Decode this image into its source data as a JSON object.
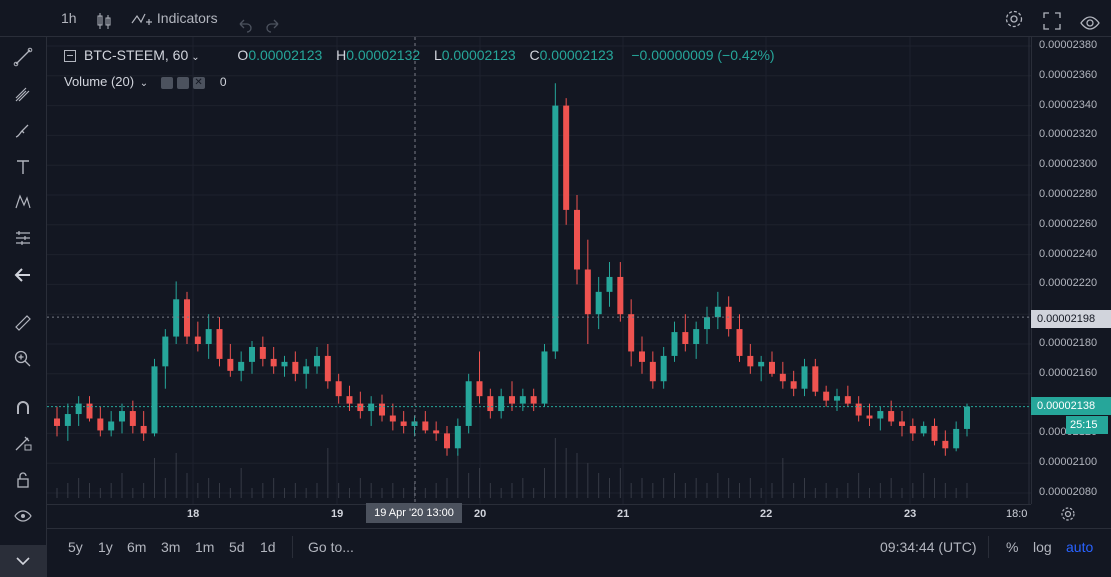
{
  "toolbar": {
    "interval": "1h",
    "indicators_label": "Indicators"
  },
  "legend": {
    "symbol": "BTC-STEEM, 60",
    "o_label": "O",
    "o_value": "0.00002123",
    "h_label": "H",
    "h_value": "0.00002132",
    "l_label": "L",
    "l_value": "0.00002123",
    "c_label": "C",
    "c_value": "0.00002123",
    "change": "−0.00000009 (−0.42%)",
    "volume_label": "Volume (20)",
    "volume_value": "0"
  },
  "price_axis": {
    "labels": [
      "0.00002380",
      "0.00002360",
      "0.00002340",
      "0.00002320",
      "0.00002300",
      "0.00002280",
      "0.00002260",
      "0.00002240",
      "0.00002220",
      "0.00002180",
      "0.00002160",
      "0.00002120",
      "0.00002100",
      "0.00002080"
    ],
    "crosshair_price": "0.00002198",
    "last_price": "0.00002138",
    "countdown": "25:15"
  },
  "time_axis": {
    "ticks": [
      "18",
      "19",
      "20",
      "21",
      "22",
      "23",
      "18:0"
    ],
    "crosshair_label": "19 Apr '20   13:00"
  },
  "bottom": {
    "ranges": [
      "5y",
      "1y",
      "6m",
      "3m",
      "1m",
      "5d",
      "1d"
    ],
    "goto": "Go to...",
    "clock": "09:34:44 (UTC)",
    "percent": "%",
    "log": "log",
    "auto": "auto"
  },
  "colors": {
    "up": "#26a69a",
    "down": "#ef5350",
    "background": "#131722",
    "accent": "#2962ff"
  },
  "chart_data": {
    "type": "candlestick",
    "symbol": "BTC-STEEM",
    "interval": "60",
    "ylim": [
      2.08e-05,
      2.39e-05
    ],
    "x_ticks": [
      "18",
      "19",
      "20",
      "21",
      "22",
      "23",
      "18:0"
    ],
    "candles": [
      [
        2.13e-05,
        2.138e-05,
        2.118e-05,
        2.125e-05
      ],
      [
        2.125e-05,
        2.14e-05,
        2.115e-05,
        2.133e-05
      ],
      [
        2.133e-05,
        2.145e-05,
        2.125e-05,
        2.14e-05
      ],
      [
        2.14e-05,
        2.145e-05,
        2.128e-05,
        2.13e-05
      ],
      [
        2.13e-05,
        2.138e-05,
        2.118e-05,
        2.122e-05
      ],
      [
        2.122e-05,
        2.135e-05,
        2.118e-05,
        2.128e-05
      ],
      [
        2.128e-05,
        2.14e-05,
        2.12e-05,
        2.135e-05
      ],
      [
        2.135e-05,
        2.142e-05,
        2.12e-05,
        2.125e-05
      ],
      [
        2.125e-05,
        2.135e-05,
        2.115e-05,
        2.12e-05
      ],
      [
        2.12e-05,
        2.17e-05,
        2.118e-05,
        2.165e-05
      ],
      [
        2.165e-05,
        2.19e-05,
        2.15e-05,
        2.185e-05
      ],
      [
        2.185e-05,
        2.222e-05,
        2.18e-05,
        2.21e-05
      ],
      [
        2.21e-05,
        2.215e-05,
        2.18e-05,
        2.185e-05
      ],
      [
        2.185e-05,
        2.195e-05,
        2.175e-05,
        2.18e-05
      ],
      [
        2.18e-05,
        2.2e-05,
        2.17e-05,
        2.19e-05
      ],
      [
        2.19e-05,
        2.198e-05,
        2.165e-05,
        2.17e-05
      ],
      [
        2.17e-05,
        2.18e-05,
        2.158e-05,
        2.162e-05
      ],
      [
        2.162e-05,
        2.175e-05,
        2.155e-05,
        2.168e-05
      ],
      [
        2.168e-05,
        2.182e-05,
        2.16e-05,
        2.178e-05
      ],
      [
        2.178e-05,
        2.185e-05,
        2.165e-05,
        2.17e-05
      ],
      [
        2.17e-05,
        2.178e-05,
        2.16e-05,
        2.165e-05
      ],
      [
        2.165e-05,
        2.172e-05,
        2.158e-05,
        2.168e-05
      ],
      [
        2.168e-05,
        2.175e-05,
        2.155e-05,
        2.16e-05
      ],
      [
        2.16e-05,
        2.17e-05,
        2.15e-05,
        2.165e-05
      ],
      [
        2.165e-05,
        2.178e-05,
        2.16e-05,
        2.172e-05
      ],
      [
        2.172e-05,
        2.18e-05,
        2.15e-05,
        2.155e-05
      ],
      [
        2.155e-05,
        2.16e-05,
        2.14e-05,
        2.145e-05
      ],
      [
        2.145e-05,
        2.152e-05,
        2.135e-05,
        2.14e-05
      ],
      [
        2.14e-05,
        2.148e-05,
        2.13e-05,
        2.135e-05
      ],
      [
        2.135e-05,
        2.145e-05,
        2.125e-05,
        2.14e-05
      ],
      [
        2.14e-05,
        2.146e-05,
        2.128e-05,
        2.132e-05
      ],
      [
        2.132e-05,
        2.14e-05,
        2.122e-05,
        2.128e-05
      ],
      [
        2.128e-05,
        2.135e-05,
        2.12e-05,
        2.125e-05
      ],
      [
        2.125e-05,
        2.132e-05,
        2.118e-05,
        2.128e-05
      ],
      [
        2.128e-05,
        2.135e-05,
        2.12e-05,
        2.122e-05
      ],
      [
        2.122e-05,
        2.128e-05,
        2.115e-05,
        2.12e-05
      ],
      [
        2.12e-05,
        2.125e-05,
        2.105e-05,
        2.11e-05
      ],
      [
        2.11e-05,
        2.13e-05,
        2.105e-05,
        2.125e-05
      ],
      [
        2.125e-05,
        2.16e-05,
        2.12e-05,
        2.155e-05
      ],
      [
        2.155e-05,
        2.175e-05,
        2.14e-05,
        2.145e-05
      ],
      [
        2.145e-05,
        2.15e-05,
        2.13e-05,
        2.135e-05
      ],
      [
        2.135e-05,
        2.15e-05,
        2.13e-05,
        2.145e-05
      ],
      [
        2.145e-05,
        2.155e-05,
        2.135e-05,
        2.14e-05
      ],
      [
        2.14e-05,
        2.15e-05,
        2.135e-05,
        2.145e-05
      ],
      [
        2.145e-05,
        2.15e-05,
        2.135e-05,
        2.14e-05
      ],
      [
        2.14e-05,
        2.18e-05,
        2.138e-05,
        2.175e-05
      ],
      [
        2.175e-05,
        2.355e-05,
        2.17e-05,
        2.34e-05
      ],
      [
        2.34e-05,
        2.345e-05,
        2.26e-05,
        2.27e-05
      ],
      [
        2.27e-05,
        2.28e-05,
        2.22e-05,
        2.23e-05
      ],
      [
        2.23e-05,
        2.25e-05,
        2.18e-05,
        2.2e-05
      ],
      [
        2.2e-05,
        2.225e-05,
        2.19e-05,
        2.215e-05
      ],
      [
        2.215e-05,
        2.235e-05,
        2.205e-05,
        2.225e-05
      ],
      [
        2.225e-05,
        2.235e-05,
        2.195e-05,
        2.2e-05
      ],
      [
        2.2e-05,
        2.21e-05,
        2.165e-05,
        2.175e-05
      ],
      [
        2.175e-05,
        2.185e-05,
        2.16e-05,
        2.168e-05
      ],
      [
        2.168e-05,
        2.175e-05,
        2.15e-05,
        2.155e-05
      ],
      [
        2.155e-05,
        2.178e-05,
        2.15e-05,
        2.172e-05
      ],
      [
        2.172e-05,
        2.195e-05,
        2.168e-05,
        2.188e-05
      ],
      [
        2.188e-05,
        2.2e-05,
        2.175e-05,
        2.18e-05
      ],
      [
        2.18e-05,
        2.195e-05,
        2.17e-05,
        2.19e-05
      ],
      [
        2.19e-05,
        2.205e-05,
        2.18e-05,
        2.198e-05
      ],
      [
        2.198e-05,
        2.215e-05,
        2.19e-05,
        2.205e-05
      ],
      [
        2.205e-05,
        2.212e-05,
        2.185e-05,
        2.19e-05
      ],
      [
        2.19e-05,
        2.2e-05,
        2.168e-05,
        2.172e-05
      ],
      [
        2.172e-05,
        2.18e-05,
        2.16e-05,
        2.165e-05
      ],
      [
        2.165e-05,
        2.172e-05,
        2.155e-05,
        2.168e-05
      ],
      [
        2.168e-05,
        2.175e-05,
        2.158e-05,
        2.16e-05
      ],
      [
        2.16e-05,
        2.168e-05,
        2.15e-05,
        2.155e-05
      ],
      [
        2.155e-05,
        2.162e-05,
        2.145e-05,
        2.15e-05
      ],
      [
        2.15e-05,
        2.17e-05,
        2.145e-05,
        2.165e-05
      ],
      [
        2.165e-05,
        2.17e-05,
        2.145e-05,
        2.148e-05
      ],
      [
        2.148e-05,
        2.152e-05,
        2.138e-05,
        2.142e-05
      ],
      [
        2.142e-05,
        2.15e-05,
        2.135e-05,
        2.145e-05
      ],
      [
        2.145e-05,
        2.152e-05,
        2.138e-05,
        2.14e-05
      ],
      [
        2.14e-05,
        2.145e-05,
        2.128e-05,
        2.132e-05
      ],
      [
        2.132e-05,
        2.14e-05,
        2.125e-05,
        2.13e-05
      ],
      [
        2.13e-05,
        2.138e-05,
        2.122e-05,
        2.135e-05
      ],
      [
        2.135e-05,
        2.142e-05,
        2.125e-05,
        2.128e-05
      ],
      [
        2.128e-05,
        2.135e-05,
        2.118e-05,
        2.125e-05
      ],
      [
        2.125e-05,
        2.13e-05,
        2.115e-05,
        2.12e-05
      ],
      [
        2.12e-05,
        2.128e-05,
        2.118e-05,
        2.125e-05
      ],
      [
        2.125e-05,
        2.13e-05,
        2.112e-05,
        2.115e-05
      ],
      [
        2.115e-05,
        2.122e-05,
        2.105e-05,
        2.11e-05
      ],
      [
        2.11e-05,
        2.128e-05,
        2.108e-05,
        2.123e-05
      ],
      [
        2.123e-05,
        2.14e-05,
        2.118e-05,
        2.138e-05
      ]
    ],
    "volume_heights": [
      2,
      3,
      4,
      3,
      2,
      3,
      5,
      2,
      3,
      8,
      4,
      9,
      5,
      3,
      4,
      3,
      2,
      6,
      2,
      3,
      4,
      2,
      3,
      2,
      3,
      10,
      3,
      2,
      4,
      3,
      2,
      3,
      2,
      3,
      2,
      3,
      4,
      9,
      5,
      6,
      3,
      2,
      3,
      4,
      2,
      6,
      12,
      10,
      9,
      7,
      5,
      4,
      6,
      3,
      4,
      3,
      4,
      5,
      3,
      4,
      3,
      5,
      4,
      3,
      4,
      2,
      3,
      8,
      3,
      4,
      2,
      3,
      2,
      3,
      5,
      2,
      3,
      4,
      2,
      3,
      5,
      4,
      3,
      2,
      3
    ]
  }
}
